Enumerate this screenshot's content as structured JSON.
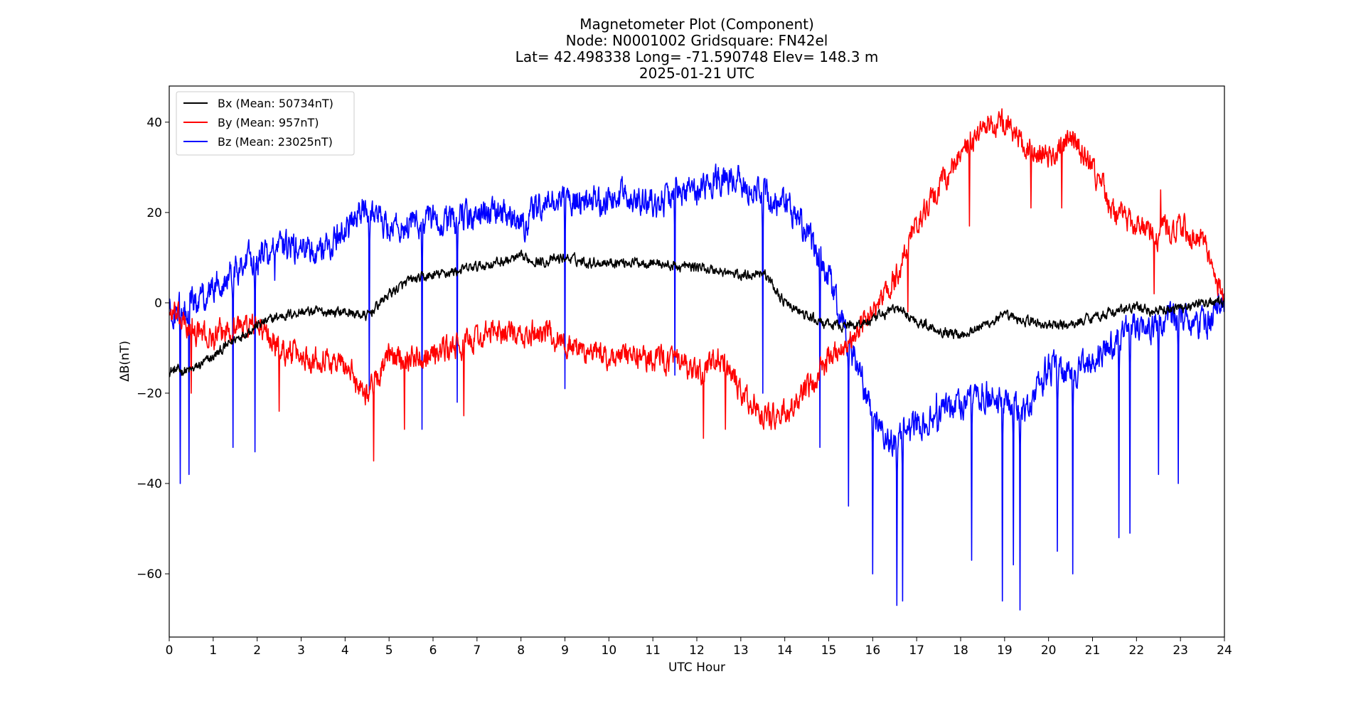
{
  "chart_data": {
    "type": "line",
    "title_lines": [
      "Magnetometer Plot (Component)",
      "Node:  N0001002     Gridsquare:  FN42el",
      "Lat= 42.498338    Long= -71.590748    Elev= 148.3 m",
      "2025-01-21  UTC"
    ],
    "xlabel": "UTC Hour",
    "ylabel": "ΔB(nT)",
    "xlim": [
      0,
      24
    ],
    "ylim": [
      -74,
      48
    ],
    "x_ticks": [
      0,
      1,
      2,
      3,
      4,
      5,
      6,
      7,
      8,
      9,
      10,
      11,
      12,
      13,
      14,
      15,
      16,
      17,
      18,
      19,
      20,
      21,
      22,
      23,
      24
    ],
    "x_tick_labels": [
      "0",
      "1",
      "2",
      "3",
      "4",
      "5",
      "6",
      "7",
      "8",
      "9",
      "10",
      "11",
      "12",
      "13",
      "14",
      "15",
      "16",
      "17",
      "18",
      "19",
      "20",
      "21",
      "22",
      "23",
      "24"
    ],
    "y_ticks": [
      40,
      20,
      0,
      -20,
      -40,
      -60
    ],
    "y_tick_labels": [
      "40",
      "20",
      "0",
      "−20",
      "−40",
      "−60"
    ],
    "legend_position": "upper-left",
    "series": [
      {
        "name": "Bx (Mean: 50734nT)",
        "color": "#000000",
        "x": [
          0,
          0.5,
          1,
          1.5,
          2,
          2.5,
          3,
          3.5,
          4,
          4.5,
          5,
          5.5,
          6,
          6.5,
          7,
          7.5,
          8,
          8.5,
          9,
          9.5,
          10,
          10.5,
          11,
          11.5,
          12,
          12.5,
          13,
          13.5,
          14,
          14.5,
          15,
          15.5,
          16,
          16.5,
          17,
          17.5,
          18,
          18.5,
          19,
          19.5,
          20,
          20.5,
          21,
          21.5,
          22,
          22.5,
          23,
          23.5,
          24
        ],
        "y": [
          -15,
          -15,
          -12,
          -8,
          -5,
          -3,
          -2,
          -2,
          -2,
          -3,
          2,
          5,
          6,
          7,
          8,
          9,
          10,
          9,
          10,
          9,
          9,
          9,
          9,
          8,
          8,
          7,
          6,
          7,
          0,
          -3,
          -5,
          -5,
          -4,
          -1,
          -4,
          -6,
          -7,
          -5,
          -3,
          -4,
          -5,
          -5,
          -3,
          -2,
          -1,
          -2,
          -1,
          0,
          0
        ]
      },
      {
        "name": "By (Mean: 957nT)",
        "color": "#ff0000",
        "x": [
          0,
          0.5,
          1,
          1.5,
          2,
          2.5,
          3,
          3.5,
          4,
          4.5,
          5,
          5.5,
          6,
          6.5,
          7,
          7.5,
          8,
          8.5,
          9,
          9.5,
          10,
          10.5,
          11,
          11.5,
          12,
          12.5,
          13,
          13.5,
          14,
          14.5,
          15,
          15.5,
          16,
          16.5,
          17,
          17.5,
          18,
          18.5,
          19,
          19.5,
          20,
          20.5,
          21,
          21.5,
          22,
          22.5,
          23,
          23.5,
          24
        ],
        "y": [
          -2,
          -6,
          -8,
          -5,
          -5,
          -10,
          -12,
          -12,
          -14,
          -20,
          -12,
          -12,
          -11,
          -10,
          -8,
          -6,
          -8,
          -6,
          -9,
          -11,
          -12,
          -12,
          -12,
          -13,
          -16,
          -12,
          -20,
          -25,
          -25,
          -20,
          -12,
          -8,
          -2,
          5,
          18,
          25,
          33,
          38,
          40,
          34,
          32,
          36,
          30,
          20,
          17,
          15,
          17,
          14,
          0
        ]
      },
      {
        "name": "Bz (Mean: 23025nT)",
        "color": "#0000ff",
        "x": [
          0,
          0.5,
          1,
          1.5,
          2,
          2.5,
          3,
          3.5,
          4,
          4.5,
          5,
          5.5,
          6,
          6.5,
          7,
          7.5,
          8,
          8.5,
          9,
          9.5,
          10,
          10.5,
          11,
          11.5,
          12,
          12.5,
          13,
          13.5,
          14,
          14.5,
          15,
          15.5,
          16,
          16.5,
          17,
          17.5,
          18,
          18.5,
          19,
          19.5,
          20,
          20.5,
          21,
          21.5,
          22,
          22.5,
          23,
          23.5,
          24
        ],
        "y": [
          -2,
          0,
          3,
          8,
          10,
          12,
          12,
          12,
          16,
          21,
          17,
          17,
          18,
          18,
          19,
          20,
          17,
          22,
          23,
          22,
          23,
          24,
          22,
          24,
          25,
          28,
          27,
          24,
          22,
          16,
          5,
          -10,
          -25,
          -32,
          -26,
          -25,
          -22,
          -20,
          -22,
          -25,
          -14,
          -16,
          -12,
          -8,
          -5,
          -5,
          -3,
          -5,
          0
        ]
      }
    ],
    "spikes": {
      "Bz": [
        [
          0.25,
          -40
        ],
        [
          0.45,
          -38
        ],
        [
          1.45,
          -32
        ],
        [
          1.95,
          -33
        ],
        [
          2.4,
          5
        ],
        [
          4.55,
          -20
        ],
        [
          5.75,
          -28
        ],
        [
          6.55,
          -22
        ],
        [
          9.0,
          -19
        ],
        [
          11.5,
          -16
        ],
        [
          13.5,
          -20
        ],
        [
          14.8,
          -32
        ],
        [
          15.45,
          -45
        ],
        [
          16.0,
          -60
        ],
        [
          16.55,
          -67
        ],
        [
          16.68,
          -66
        ],
        [
          17.45,
          -20
        ],
        [
          18.25,
          -57
        ],
        [
          18.95,
          -66
        ],
        [
          19.2,
          -58
        ],
        [
          19.35,
          -68
        ],
        [
          20.2,
          -55
        ],
        [
          20.55,
          -60
        ],
        [
          21.85,
          -51
        ],
        [
          21.6,
          -52
        ],
        [
          22.5,
          -38
        ],
        [
          22.95,
          -40
        ]
      ],
      "By": [
        [
          0.5,
          -20
        ],
        [
          2.5,
          -24
        ],
        [
          4.65,
          -35
        ],
        [
          5.35,
          -28
        ],
        [
          6.7,
          -25
        ],
        [
          12.15,
          -30
        ],
        [
          12.65,
          -28
        ],
        [
          16.8,
          -2
        ],
        [
          18.2,
          17
        ],
        [
          19.6,
          21
        ],
        [
          20.3,
          21
        ],
        [
          22.4,
          2
        ],
        [
          22.55,
          25
        ]
      ],
      "Bx": []
    }
  }
}
